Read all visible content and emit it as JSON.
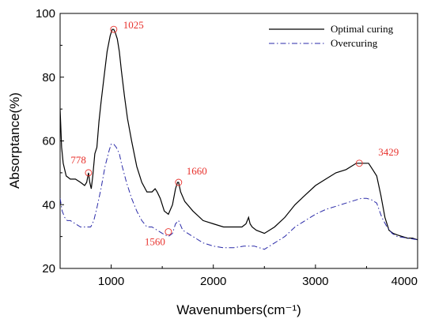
{
  "chart_data": {
    "type": "line",
    "xlabel": "Wavenumbers(cm⁻¹)",
    "ylabel": "Absorptance(%)",
    "xlim": [
      500,
      4000
    ],
    "ylim": [
      20,
      100
    ],
    "xticks": [
      1000,
      2000,
      3000,
      4000
    ],
    "yticks": [
      20,
      40,
      60,
      80,
      100
    ],
    "xtick_labels": [
      "1000",
      "2000",
      "3000",
      "4000"
    ],
    "ytick_labels": [
      "20",
      "40",
      "60",
      "80",
      "100"
    ],
    "grid": false,
    "legend_position": "top-right",
    "colors": {
      "annotation": "#e8322d",
      "optimal": "#000000",
      "over": "#2a2aa8"
    },
    "series": [
      {
        "name": "Optimal curing",
        "style": "solid",
        "x": [
          500,
          515,
          530,
          560,
          600,
          650,
          700,
          740,
          760,
          778,
          790,
          805,
          820,
          840,
          860,
          880,
          900,
          930,
          960,
          990,
          1010,
          1025,
          1040,
          1060,
          1080,
          1100,
          1130,
          1160,
          1200,
          1250,
          1300,
          1350,
          1400,
          1430,
          1450,
          1480,
          1520,
          1560,
          1600,
          1630,
          1650,
          1660,
          1680,
          1720,
          1800,
          1900,
          2000,
          2100,
          2200,
          2280,
          2320,
          2345,
          2360,
          2380,
          2420,
          2500,
          2600,
          2700,
          2800,
          2900,
          3000,
          3100,
          3200,
          3300,
          3400,
          3429,
          3480,
          3520,
          3560,
          3600,
          3640,
          3680,
          3720,
          3760,
          3800,
          3850,
          3900,
          3950,
          4000
        ],
        "y": [
          70,
          58,
          53,
          49,
          48,
          48,
          47,
          46,
          47,
          50,
          47,
          45,
          49,
          56,
          58,
          66,
          72,
          80,
          88,
          93,
          95,
          95,
          94,
          92,
          88,
          82,
          74,
          67,
          60,
          52,
          47,
          44,
          44,
          45,
          44,
          42,
          38,
          37,
          40,
          45,
          47,
          47,
          44,
          41,
          38,
          35,
          34,
          33,
          33,
          33,
          34,
          36,
          34,
          33,
          32,
          31,
          33,
          36,
          40,
          43,
          46,
          48,
          50,
          51,
          53,
          53,
          53,
          53,
          51,
          49,
          43,
          36,
          32,
          31,
          30.5,
          30,
          29.5,
          29.5,
          29
        ]
      },
      {
        "name": "Overcuring",
        "style": "dashdot",
        "x": [
          500,
          520,
          545,
          570,
          600,
          650,
          700,
          740,
          778,
          800,
          830,
          860,
          900,
          940,
          980,
          1000,
          1025,
          1050,
          1080,
          1100,
          1150,
          1200,
          1250,
          1300,
          1350,
          1400,
          1450,
          1500,
          1560,
          1600,
          1630,
          1660,
          1700,
          1800,
          1900,
          2000,
          2100,
          2200,
          2300,
          2400,
          2500,
          2600,
          2700,
          2800,
          2900,
          3000,
          3100,
          3200,
          3300,
          3400,
          3450,
          3500,
          3550,
          3600,
          3650,
          3700,
          3750,
          3800,
          3900,
          4000
        ],
        "y": [
          42,
          38,
          36,
          35,
          35,
          34,
          33,
          33,
          33,
          33,
          35,
          39,
          45,
          52,
          57,
          59,
          59,
          58,
          56,
          53,
          47,
          42,
          38,
          35,
          33,
          33,
          32,
          31,
          30,
          31,
          34,
          35,
          32,
          30,
          28,
          27,
          26.5,
          26.5,
          27,
          27,
          26,
          28,
          30,
          33,
          35,
          37,
          38.5,
          39.5,
          40.5,
          41.5,
          42,
          42,
          41.5,
          40.5,
          36,
          33,
          31,
          30,
          29.5,
          29
        ]
      }
    ],
    "annotations": [
      {
        "label": "778",
        "x": 778,
        "y": 50
      },
      {
        "label": "1025",
        "x": 1025,
        "y": 95
      },
      {
        "label": "1660",
        "x": 1660,
        "y": 47
      },
      {
        "label": "1560",
        "x": 1560,
        "y": 31.5
      },
      {
        "label": "3429",
        "x": 3429,
        "y": 53
      }
    ]
  }
}
